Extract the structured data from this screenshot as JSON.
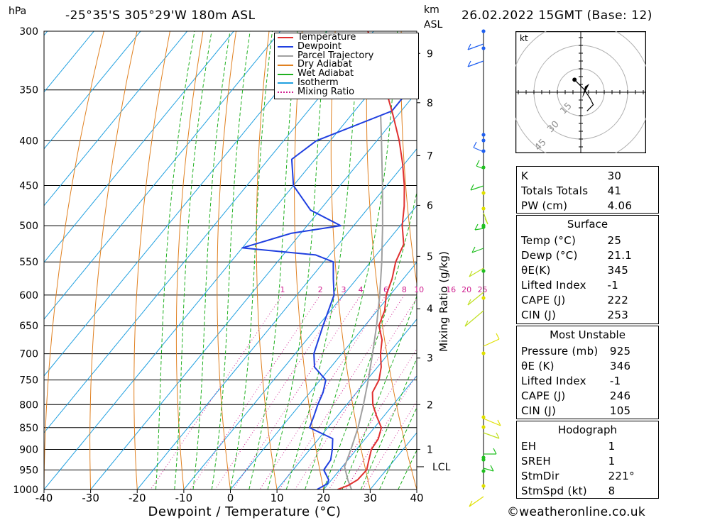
{
  "header": {
    "pressure_unit": "hPa",
    "location": "-25°35'S  305°29'W  180m  ASL",
    "height_unit": "km",
    "height_ref": "ASL",
    "datetime": "26.02.2022  15GMT  (Base: 12)"
  },
  "footer": {
    "credit": "©weatheronline.co.uk"
  },
  "colors": {
    "temperature": "#e03030",
    "dewpoint": "#2040e0",
    "parcel": "#a0a0a0",
    "dry_adiabat": "#e08020",
    "wet_adiabat": "#20b020",
    "isotherm": "#20a0e0",
    "mixing_ratio": "#d02090",
    "wind": "#e0e000"
  },
  "chart_data": [
    {
      "type": "line",
      "name": "skew-t",
      "xlabel": "Dewpoint / Temperature (°C)",
      "ylabel": "hPa",
      "secondary_ylabel": "km ASL",
      "mixing_ratio_label": "Mixing Ratio (g/kg)",
      "xlim": [
        -40,
        40
      ],
      "ylim": [
        1000,
        300
      ],
      "x_ticks": [
        -40,
        -30,
        -20,
        -10,
        0,
        10,
        20,
        30,
        40
      ],
      "pressure_levels": [
        300,
        350,
        400,
        450,
        500,
        550,
        600,
        650,
        700,
        750,
        800,
        850,
        900,
        950,
        1000
      ],
      "km_ticks": [
        {
          "label": "1",
          "p": 900
        },
        {
          "label": "2",
          "p": 800
        },
        {
          "label": "3",
          "p": 708
        },
        {
          "label": "4",
          "p": 622
        },
        {
          "label": "5",
          "p": 542
        },
        {
          "label": "6",
          "p": 474
        },
        {
          "label": "7",
          "p": 416
        },
        {
          "label": "8",
          "p": 362
        },
        {
          "label": "9",
          "p": 318
        }
      ],
      "lcl_label": "LCL",
      "lcl_pressure": 942,
      "mixing_ratio_values": [
        "1",
        "2",
        "3",
        "4",
        "6",
        "8",
        "10",
        "16",
        "20",
        "25"
      ],
      "legend": [
        "Temperature",
        "Dewpoint",
        "Parcel Trajectory",
        "Dry Adiabat",
        "Wet Adiabat",
        "Isotherm",
        "Mixing Ratio"
      ],
      "legend_position": "top-right",
      "series": [
        {
          "name": "Temperature",
          "points": [
            [
              1000,
              23
            ],
            [
              990,
              24.5
            ],
            [
              975,
              25.6
            ],
            [
              950,
              25.8
            ],
            [
              925,
              24.5
            ],
            [
              900,
              23.2
            ],
            [
              875,
              22.8
            ],
            [
              850,
              21.5
            ],
            [
              825,
              18.5
            ],
            [
              800,
              15.6
            ],
            [
              775,
              13.4
            ],
            [
              750,
              12.6
            ],
            [
              725,
              10.8
            ],
            [
              700,
              8.3
            ],
            [
              675,
              6.2
            ],
            [
              650,
              3.0
            ],
            [
              625,
              1.6
            ],
            [
              600,
              -0.8
            ],
            [
              575,
              -2.4
            ],
            [
              550,
              -4.6
            ],
            [
              525,
              -6.0
            ],
            [
              500,
              -9.6
            ],
            [
              475,
              -12.6
            ],
            [
              450,
              -16.2
            ],
            [
              425,
              -20.4
            ],
            [
              400,
              -25.2
            ],
            [
              375,
              -30.8
            ],
            [
              350,
              -37.0
            ],
            [
              325,
              -43.8
            ],
            [
              300,
              -51.2
            ]
          ]
        },
        {
          "name": "Dewpoint",
          "points": [
            [
              1000,
              18.6
            ],
            [
              985,
              19.8
            ],
            [
              975,
              19.4
            ],
            [
              950,
              16.6
            ],
            [
              925,
              16.3
            ],
            [
              900,
              14.8
            ],
            [
              875,
              13.0
            ],
            [
              860,
              8.9
            ],
            [
              850,
              6.1
            ],
            [
              825,
              5.0
            ],
            [
              800,
              3.8
            ],
            [
              775,
              2.8
            ],
            [
              750,
              1.2
            ],
            [
              725,
              -3.5
            ],
            [
              700,
              -6.0
            ],
            [
              650,
              -9.0
            ],
            [
              600,
              -12.0
            ],
            [
              575,
              -15.0
            ],
            [
              550,
              -18.0
            ],
            [
              540,
              -23.0
            ],
            [
              530,
              -40.0
            ],
            [
              510,
              -32.0
            ],
            [
              500,
              -22.8
            ],
            [
              480,
              -32.0
            ],
            [
              450,
              -40.0
            ],
            [
              420,
              -45.0
            ],
            [
              400,
              -43.0
            ],
            [
              370,
              -32.0
            ],
            [
              350,
              -32.0
            ],
            [
              320,
              -29.0
            ],
            [
              300,
              -25.4
            ]
          ]
        },
        {
          "name": "Parcel Trajectory",
          "points": [
            [
              1000,
              26.0
            ],
            [
              975,
              23.5
            ],
            [
              942,
              20.5
            ],
            [
              900,
              18.8
            ],
            [
              850,
              16.5
            ],
            [
              800,
              13.6
            ],
            [
              750,
              10.3
            ],
            [
              700,
              6.6
            ],
            [
              650,
              2.5
            ],
            [
              600,
              -2.2
            ],
            [
              550,
              -7.6
            ],
            [
              500,
              -13.8
            ],
            [
              450,
              -20.9
            ],
            [
              400,
              -29.0
            ],
            [
              375,
              -33.5
            ]
          ]
        }
      ]
    },
    {
      "type": "scatter",
      "name": "hodograph",
      "unit_label": "kt",
      "ring_labels": [
        "15",
        "30",
        "45"
      ],
      "points": [
        [
          -2,
          4
        ],
        [
          1,
          1
        ],
        [
          3,
          -2
        ],
        [
          4,
          -4
        ],
        [
          2,
          -6
        ]
      ]
    }
  ],
  "indices": {
    "rows": [
      {
        "label": "K",
        "value": "30"
      },
      {
        "label": "Totals Totals",
        "value": "41"
      },
      {
        "label": "PW (cm)",
        "value": "4.06"
      }
    ]
  },
  "surface": {
    "title": "Surface",
    "rows": [
      {
        "label": "Temp (°C)",
        "value": "25"
      },
      {
        "label": "Dewp (°C)",
        "value": "21.1"
      },
      {
        "label": "θE(K)",
        "value": "345"
      },
      {
        "label": "Lifted Index",
        "value": "-1"
      },
      {
        "label": "CAPE (J)",
        "value": "222"
      },
      {
        "label": "CIN (J)",
        "value": "253"
      }
    ]
  },
  "most_unstable": {
    "title": "Most Unstable",
    "rows": [
      {
        "label": "Pressure (mb)",
        "value": "925"
      },
      {
        "label": "θE (K)",
        "value": "346"
      },
      {
        "label": "Lifted Index",
        "value": "-1"
      },
      {
        "label": "CAPE (J)",
        "value": "246"
      },
      {
        "label": "CIN (J)",
        "value": "105"
      }
    ]
  },
  "hodograph_table": {
    "title": "Hodograph",
    "rows": [
      {
        "label": "EH",
        "value": "1"
      },
      {
        "label": "SREH",
        "value": "1"
      },
      {
        "label": "StmDir",
        "value": "221°"
      },
      {
        "label": "StmSpd (kt)",
        "value": "8"
      }
    ]
  }
}
